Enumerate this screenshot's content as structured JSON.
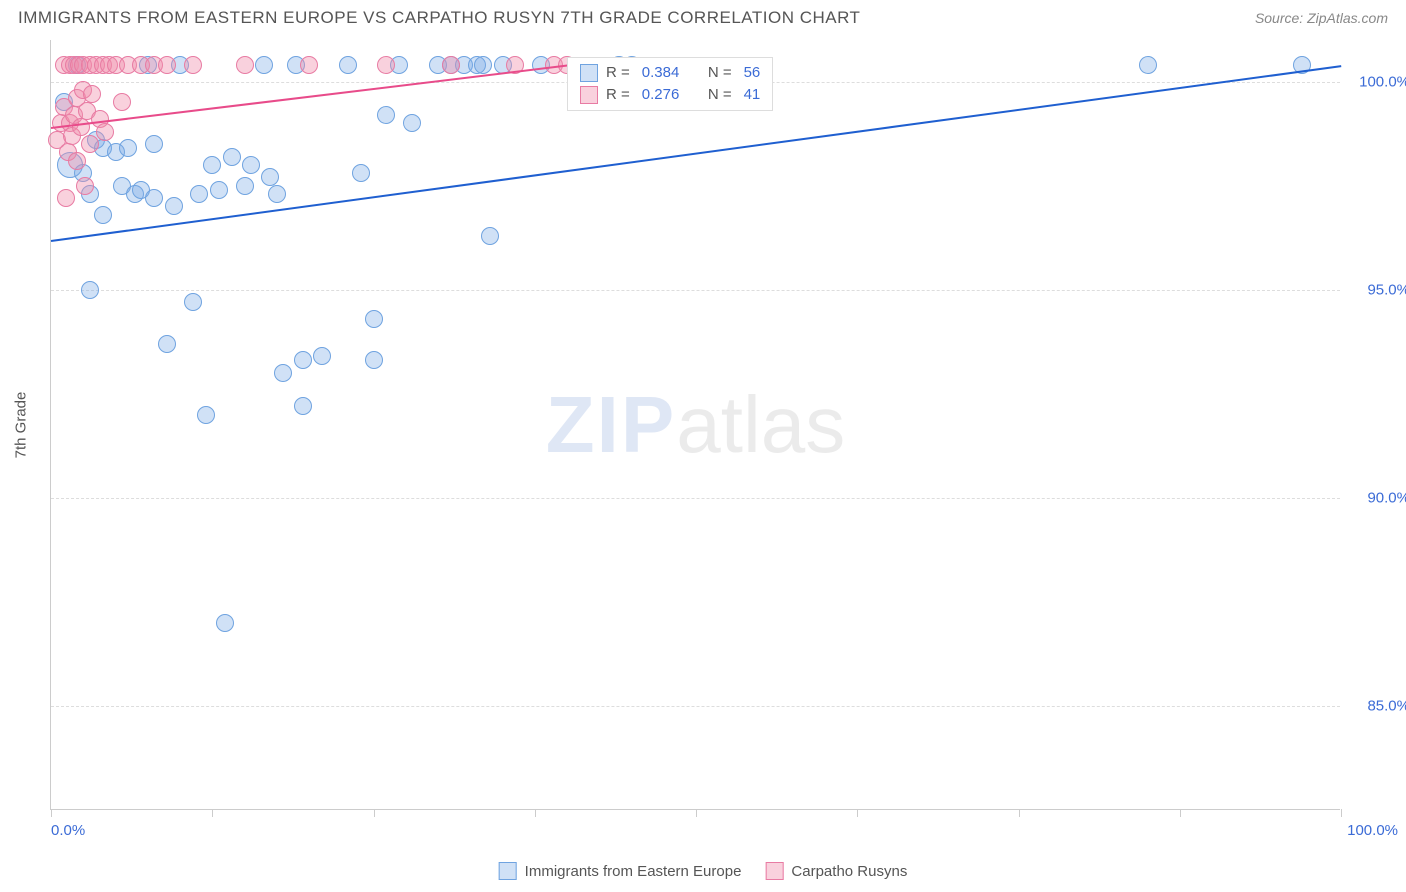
{
  "header": {
    "title": "IMMIGRANTS FROM EASTERN EUROPE VS CARPATHO RUSYN 7TH GRADE CORRELATION CHART",
    "source_label": "Source:",
    "source_name": "ZipAtlas.com"
  },
  "axes": {
    "y_label": "7th Grade",
    "x_min": 0,
    "x_max": 100,
    "y_min": 82.5,
    "y_max": 101,
    "y_ticks": [
      {
        "v": 85.0,
        "label": "85.0%"
      },
      {
        "v": 90.0,
        "label": "90.0%"
      },
      {
        "v": 95.0,
        "label": "95.0%"
      },
      {
        "v": 100.0,
        "label": "100.0%"
      }
    ],
    "x_ticks": [
      0,
      12.5,
      25,
      37.5,
      50,
      62.5,
      75,
      87.5,
      100
    ],
    "x_label_start": "0.0%",
    "x_label_end": "100.0%"
  },
  "styling": {
    "grid_color": "#dddddd",
    "axis_color": "#cccccc",
    "tick_label_color": "#3b6bd6",
    "background_color": "#ffffff",
    "point_radius": 9,
    "point_radius_large": 13,
    "title_color": "#555555",
    "title_fontsize": 17,
    "label_fontsize": 15,
    "watermark_zip_color": "rgba(80,120,200,0.18)",
    "watermark_atlas_color": "rgba(120,120,120,0.15)"
  },
  "series": [
    {
      "name": "Immigrants from Eastern Europe",
      "fill": "rgba(120,170,230,0.35)",
      "stroke": "#6fa3e0",
      "trend_color": "#1f5fd0",
      "trend": {
        "x1": 0,
        "y1": 96.2,
        "x2": 100,
        "y2": 100.4
      },
      "points": [
        {
          "x": 1,
          "y": 99.5,
          "r": 9
        },
        {
          "x": 1.5,
          "y": 98.0,
          "r": 13
        },
        {
          "x": 2,
          "y": 100.4,
          "r": 9
        },
        {
          "x": 2.5,
          "y": 97.8,
          "r": 9
        },
        {
          "x": 3,
          "y": 95.0,
          "r": 9
        },
        {
          "x": 3,
          "y": 97.3,
          "r": 9
        },
        {
          "x": 3.5,
          "y": 98.6,
          "r": 9
        },
        {
          "x": 4,
          "y": 98.4,
          "r": 9
        },
        {
          "x": 4,
          "y": 96.8,
          "r": 9
        },
        {
          "x": 5,
          "y": 98.3,
          "r": 9
        },
        {
          "x": 5.5,
          "y": 97.5,
          "r": 9
        },
        {
          "x": 6,
          "y": 98.4,
          "r": 9
        },
        {
          "x": 6.5,
          "y": 97.3,
          "r": 9
        },
        {
          "x": 7,
          "y": 97.4,
          "r": 9
        },
        {
          "x": 7.5,
          "y": 100.4,
          "r": 9
        },
        {
          "x": 8,
          "y": 97.2,
          "r": 9
        },
        {
          "x": 8,
          "y": 98.5,
          "r": 9
        },
        {
          "x": 9,
          "y": 93.7,
          "r": 9
        },
        {
          "x": 9.5,
          "y": 97.0,
          "r": 9
        },
        {
          "x": 10,
          "y": 100.4,
          "r": 9
        },
        {
          "x": 11,
          "y": 94.7,
          "r": 9
        },
        {
          "x": 11.5,
          "y": 97.3,
          "r": 9
        },
        {
          "x": 12,
          "y": 92.0,
          "r": 9
        },
        {
          "x": 12.5,
          "y": 98.0,
          "r": 9
        },
        {
          "x": 13,
          "y": 97.4,
          "r": 9
        },
        {
          "x": 13.5,
          "y": 87.0,
          "r": 9
        },
        {
          "x": 14,
          "y": 98.2,
          "r": 9
        },
        {
          "x": 15,
          "y": 97.5,
          "r": 9
        },
        {
          "x": 15.5,
          "y": 98.0,
          "r": 9
        },
        {
          "x": 16.5,
          "y": 100.4,
          "r": 9
        },
        {
          "x": 17,
          "y": 97.7,
          "r": 9
        },
        {
          "x": 17.5,
          "y": 97.3,
          "r": 9
        },
        {
          "x": 18,
          "y": 93.0,
          "r": 9
        },
        {
          "x": 19,
          "y": 100.4,
          "r": 9
        },
        {
          "x": 19.5,
          "y": 92.2,
          "r": 9
        },
        {
          "x": 19.5,
          "y": 93.3,
          "r": 9
        },
        {
          "x": 21,
          "y": 93.4,
          "r": 9
        },
        {
          "x": 23,
          "y": 100.4,
          "r": 9
        },
        {
          "x": 24,
          "y": 97.8,
          "r": 9
        },
        {
          "x": 25,
          "y": 94.3,
          "r": 9
        },
        {
          "x": 25,
          "y": 93.3,
          "r": 9
        },
        {
          "x": 26,
          "y": 99.2,
          "r": 9
        },
        {
          "x": 27,
          "y": 100.4,
          "r": 9
        },
        {
          "x": 28,
          "y": 99.0,
          "r": 9
        },
        {
          "x": 30,
          "y": 100.4,
          "r": 9
        },
        {
          "x": 31,
          "y": 100.4,
          "r": 9
        },
        {
          "x": 32,
          "y": 100.4,
          "r": 9
        },
        {
          "x": 33,
          "y": 100.4,
          "r": 9
        },
        {
          "x": 33.5,
          "y": 100.4,
          "r": 9
        },
        {
          "x": 34,
          "y": 96.3,
          "r": 9
        },
        {
          "x": 35,
          "y": 100.4,
          "r": 9
        },
        {
          "x": 38,
          "y": 100.4,
          "r": 9
        },
        {
          "x": 44,
          "y": 100.4,
          "r": 9
        },
        {
          "x": 45,
          "y": 100.4,
          "r": 9
        },
        {
          "x": 85,
          "y": 100.4,
          "r": 9
        },
        {
          "x": 97,
          "y": 100.4,
          "r": 9
        }
      ]
    },
    {
      "name": "Carpatho Rusyns",
      "fill": "rgba(240,140,170,0.4)",
      "stroke": "#e87ba3",
      "trend_color": "#e84b8a",
      "trend": {
        "x1": 0,
        "y1": 98.9,
        "x2": 40,
        "y2": 100.4
      },
      "points": [
        {
          "x": 0.5,
          "y": 98.6,
          "r": 9
        },
        {
          "x": 0.8,
          "y": 99.0,
          "r": 9
        },
        {
          "x": 1,
          "y": 99.4,
          "r": 9
        },
        {
          "x": 1,
          "y": 100.4,
          "r": 9
        },
        {
          "x": 1.2,
          "y": 97.2,
          "r": 9
        },
        {
          "x": 1.3,
          "y": 98.3,
          "r": 9
        },
        {
          "x": 1.5,
          "y": 100.4,
          "r": 9
        },
        {
          "x": 1.5,
          "y": 99.0,
          "r": 9
        },
        {
          "x": 1.6,
          "y": 98.7,
          "r": 9
        },
        {
          "x": 1.8,
          "y": 99.2,
          "r": 9
        },
        {
          "x": 1.8,
          "y": 100.4,
          "r": 9
        },
        {
          "x": 2,
          "y": 99.6,
          "r": 9
        },
        {
          "x": 2,
          "y": 98.1,
          "r": 9
        },
        {
          "x": 2.2,
          "y": 100.4,
          "r": 9
        },
        {
          "x": 2.3,
          "y": 98.9,
          "r": 9
        },
        {
          "x": 2.5,
          "y": 99.8,
          "r": 9
        },
        {
          "x": 2.5,
          "y": 100.4,
          "r": 9
        },
        {
          "x": 2.6,
          "y": 97.5,
          "r": 9
        },
        {
          "x": 2.8,
          "y": 99.3,
          "r": 9
        },
        {
          "x": 3,
          "y": 100.4,
          "r": 9
        },
        {
          "x": 3,
          "y": 98.5,
          "r": 9
        },
        {
          "x": 3.2,
          "y": 99.7,
          "r": 9
        },
        {
          "x": 3.5,
          "y": 100.4,
          "r": 9
        },
        {
          "x": 3.8,
          "y": 99.1,
          "r": 9
        },
        {
          "x": 4,
          "y": 100.4,
          "r": 9
        },
        {
          "x": 4.2,
          "y": 98.8,
          "r": 9
        },
        {
          "x": 4.5,
          "y": 100.4,
          "r": 9
        },
        {
          "x": 5,
          "y": 100.4,
          "r": 9
        },
        {
          "x": 5.5,
          "y": 99.5,
          "r": 9
        },
        {
          "x": 6,
          "y": 100.4,
          "r": 9
        },
        {
          "x": 7,
          "y": 100.4,
          "r": 9
        },
        {
          "x": 8,
          "y": 100.4,
          "r": 9
        },
        {
          "x": 9,
          "y": 100.4,
          "r": 9
        },
        {
          "x": 11,
          "y": 100.4,
          "r": 9
        },
        {
          "x": 15,
          "y": 100.4,
          "r": 9
        },
        {
          "x": 20,
          "y": 100.4,
          "r": 9
        },
        {
          "x": 26,
          "y": 100.4,
          "r": 9
        },
        {
          "x": 31,
          "y": 100.4,
          "r": 9
        },
        {
          "x": 36,
          "y": 100.4,
          "r": 9
        },
        {
          "x": 39,
          "y": 100.4,
          "r": 9
        },
        {
          "x": 40,
          "y": 100.4,
          "r": 9
        }
      ]
    }
  ],
  "stats_legend": {
    "rows": [
      {
        "swatch_fill": "rgba(120,170,230,0.35)",
        "swatch_stroke": "#6fa3e0",
        "r_label": "R =",
        "r_val": "0.384",
        "n_label": "N =",
        "n_val": "56"
      },
      {
        "swatch_fill": "rgba(240,140,170,0.4)",
        "swatch_stroke": "#e87ba3",
        "r_label": "R =",
        "r_val": "0.276",
        "n_label": "N =",
        "n_val": "41"
      }
    ]
  },
  "bottom_legend": {
    "items": [
      {
        "swatch_fill": "rgba(120,170,230,0.35)",
        "swatch_stroke": "#6fa3e0",
        "label": "Immigrants from Eastern Europe"
      },
      {
        "swatch_fill": "rgba(240,140,170,0.4)",
        "swatch_stroke": "#e87ba3",
        "label": "Carpatho Rusyns"
      }
    ]
  },
  "watermark": {
    "zip": "ZIP",
    "atlas": "atlas"
  }
}
